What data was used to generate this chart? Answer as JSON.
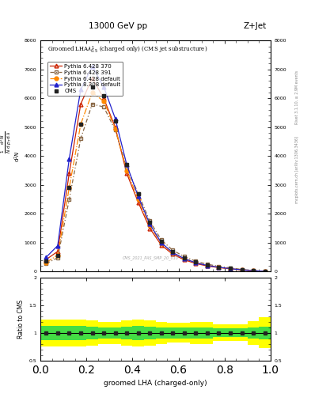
{
  "title_top": "13000 GeV pp",
  "title_right": "Z+Jet",
  "xlabel": "groomed LHA (charged-only)",
  "right_label_top": "Rivet 3.1.10, ≥ 2.9M events",
  "right_label_bottom": "mcplots.cern.ch [arXiv:1306.3436]",
  "watermark": "CMS_2021_PAS_SMP_20_010",
  "xlim": [
    0,
    1
  ],
  "ylim_main": [
    0,
    8000
  ],
  "ylim_ratio": [
    0.5,
    2.0
  ],
  "x_data": [
    0.025,
    0.075,
    0.125,
    0.175,
    0.225,
    0.275,
    0.325,
    0.375,
    0.425,
    0.475,
    0.525,
    0.575,
    0.625,
    0.675,
    0.725,
    0.775,
    0.825,
    0.875,
    0.925,
    0.975
  ],
  "cms_data": [
    380,
    550,
    2900,
    5100,
    6400,
    6100,
    5200,
    3700,
    2700,
    1700,
    1050,
    700,
    480,
    330,
    230,
    160,
    110,
    65,
    35,
    12
  ],
  "pythia6_370": [
    420,
    700,
    3400,
    5800,
    6700,
    6000,
    5000,
    3400,
    2400,
    1500,
    920,
    600,
    410,
    280,
    195,
    140,
    96,
    58,
    30,
    10
  ],
  "pythia6_391": [
    280,
    480,
    2500,
    4600,
    5800,
    5700,
    4900,
    3600,
    2700,
    1750,
    1100,
    740,
    520,
    360,
    255,
    185,
    128,
    76,
    40,
    14
  ],
  "pythia6_default": [
    320,
    570,
    2900,
    5100,
    6200,
    5900,
    4950,
    3500,
    2500,
    1600,
    980,
    650,
    450,
    308,
    215,
    155,
    106,
    63,
    33,
    11
  ],
  "pythia8_default": [
    500,
    900,
    3900,
    6300,
    7100,
    6400,
    5300,
    3700,
    2600,
    1650,
    1000,
    660,
    450,
    308,
    212,
    152,
    104,
    62,
    32,
    10
  ],
  "ratio_green_low": [
    0.87,
    0.87,
    0.87,
    0.87,
    0.88,
    0.9,
    0.9,
    0.88,
    0.87,
    0.88,
    0.9,
    0.9,
    0.9,
    0.9,
    0.9,
    0.92,
    0.92,
    0.92,
    0.9,
    0.88
  ],
  "ratio_green_high": [
    1.13,
    1.13,
    1.13,
    1.13,
    1.12,
    1.1,
    1.1,
    1.12,
    1.13,
    1.12,
    1.1,
    1.1,
    1.1,
    1.1,
    1.1,
    1.08,
    1.08,
    1.08,
    1.1,
    1.12
  ],
  "ratio_yellow_low": [
    0.75,
    0.75,
    0.75,
    0.75,
    0.77,
    0.8,
    0.8,
    0.77,
    0.75,
    0.77,
    0.8,
    0.82,
    0.82,
    0.8,
    0.8,
    0.85,
    0.85,
    0.85,
    0.78,
    0.72
  ],
  "ratio_yellow_high": [
    1.25,
    1.25,
    1.25,
    1.25,
    1.23,
    1.2,
    1.2,
    1.23,
    1.25,
    1.23,
    1.2,
    1.18,
    1.18,
    1.2,
    1.2,
    1.15,
    1.15,
    1.15,
    1.22,
    1.28
  ],
  "colors": {
    "cms": "#222222",
    "pythia6_370": "#cc2200",
    "pythia6_391": "#886644",
    "pythia6_default": "#ff8800",
    "pythia8_default": "#2222cc"
  },
  "yticks_main": [
    0,
    1000,
    2000,
    3000,
    4000,
    5000,
    6000,
    7000,
    8000
  ],
  "ytick_labels_main": [
    "0",
    "1000",
    "2000",
    "3000",
    "4000",
    "5000",
    "6000",
    "7000",
    "8000"
  ],
  "ratio_yticks": [
    0.5,
    1.0,
    1.5,
    2.0
  ],
  "ratio_ytick_labels": [
    "0.5",
    "1",
    "1.5",
    "2"
  ]
}
